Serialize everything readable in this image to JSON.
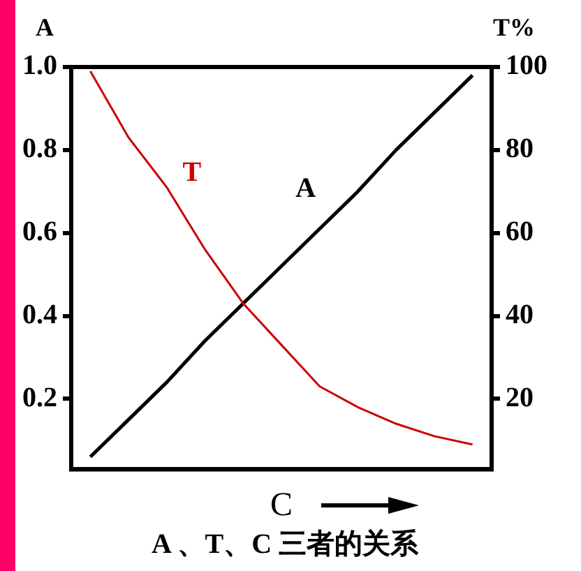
{
  "chart_data": {
    "type": "line",
    "title": "A 、T、C 三者的关系",
    "xlabel": "C",
    "ylabel": "A",
    "y2label": "T%",
    "categories": [
      null,
      null,
      null,
      null,
      null,
      null,
      null,
      null,
      null,
      null,
      null
    ],
    "series": [
      {
        "name": "T",
        "color": "#cc0000",
        "axis": "y2",
        "values": [
          99,
          83,
          71,
          56,
          43,
          33,
          23,
          18,
          14,
          11,
          9
        ]
      },
      {
        "name": "A",
        "color": "#000000",
        "values": [
          0.06,
          0.15,
          0.24,
          0.34,
          0.43,
          0.52,
          0.61,
          0.7,
          0.8,
          0.89,
          0.98
        ]
      }
    ],
    "ylim": [
      0.03,
      1.0
    ],
    "yticks": [
      0.2,
      0.4,
      0.6,
      0.8,
      {
        "value": 1,
        "label": "1.0"
      }
    ],
    "y2lim": [
      3,
      100
    ],
    "y2ticks": [
      20,
      40,
      60,
      80,
      100
    ],
    "grid": false,
    "legend": false,
    "marker": "none",
    "line_style": "solid",
    "tick_labels": "y"
  }
}
